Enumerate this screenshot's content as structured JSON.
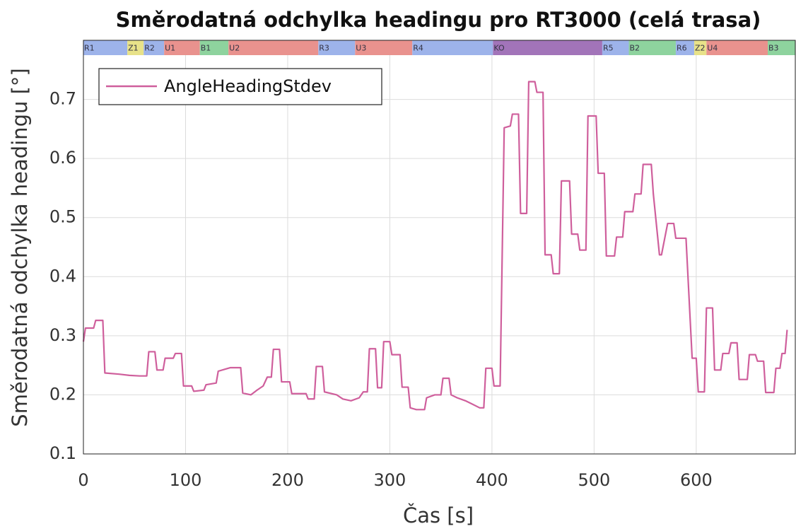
{
  "chart_data": {
    "type": "line",
    "title": "Směrodatná odchylka headingu pro RT3000 (celá trasa)",
    "xlabel": "Čas [s]",
    "ylabel": "Směrodatná odchylka headingu [°]",
    "xlim": [
      0,
      697
    ],
    "ylim": [
      0.1,
      0.8
    ],
    "xticks": [
      0,
      100,
      200,
      300,
      400,
      500,
      600
    ],
    "yticks": [
      0.1,
      0.2,
      0.3,
      0.4,
      0.5,
      0.6,
      0.7
    ],
    "grid": true,
    "legend": "upper left",
    "bands": [
      {
        "label": "R1",
        "start": 0,
        "end": 43,
        "color": "#9db3ea"
      },
      {
        "label": "Z1",
        "start": 43,
        "end": 59,
        "color": "#e8e289"
      },
      {
        "label": "R2",
        "start": 59,
        "end": 79,
        "color": "#9db3ea"
      },
      {
        "label": "U1",
        "start": 79,
        "end": 114,
        "color": "#e9928e"
      },
      {
        "label": "B1",
        "start": 114,
        "end": 142,
        "color": "#8ed39e"
      },
      {
        "label": "U2",
        "start": 142,
        "end": 230,
        "color": "#e9928e"
      },
      {
        "label": "R3",
        "start": 230,
        "end": 266,
        "color": "#9db3ea"
      },
      {
        "label": "U3",
        "start": 266,
        "end": 322,
        "color": "#e9928e"
      },
      {
        "label": "R4",
        "start": 322,
        "end": 401,
        "color": "#9db3ea"
      },
      {
        "label": "KO",
        "start": 401,
        "end": 508,
        "color": "#a274b9"
      },
      {
        "label": "R5",
        "start": 508,
        "end": 534,
        "color": "#9db3ea"
      },
      {
        "label": "B2",
        "start": 534,
        "end": 580,
        "color": "#8ed39e"
      },
      {
        "label": "R6",
        "start": 580,
        "end": 598,
        "color": "#9db3ea"
      },
      {
        "label": "Z2",
        "start": 598,
        "end": 610,
        "color": "#e8e289"
      },
      {
        "label": "U4",
        "start": 610,
        "end": 670,
        "color": "#e9928e"
      },
      {
        "label": "B3",
        "start": 670,
        "end": 697,
        "color": "#8ed39e"
      }
    ],
    "series": [
      {
        "name": "AngleHeadingStdev",
        "color": "#cf5f9c",
        "x": [
          0,
          2,
          10,
          12,
          19,
          21,
          35,
          45,
          55,
          62,
          64,
          70,
          72,
          78,
          80,
          88,
          90,
          96,
          98,
          106,
          108,
          118,
          120,
          130,
          132,
          138,
          144,
          154,
          156,
          164,
          170,
          176,
          180,
          184,
          186,
          192,
          194,
          202,
          204,
          218,
          220,
          226,
          228,
          234,
          236,
          248,
          254,
          262,
          270,
          274,
          278,
          280,
          286,
          288,
          292,
          294,
          300,
          302,
          310,
          312,
          318,
          320,
          326,
          334,
          336,
          344,
          350,
          352,
          358,
          360,
          366,
          374,
          380,
          388,
          392,
          394,
          400,
          402,
          408,
          412,
          418,
          420,
          426,
          428,
          434,
          436,
          442,
          444,
          450,
          452,
          458,
          460,
          466,
          468,
          476,
          478,
          484,
          486,
          492,
          494,
          502,
          504,
          510,
          512,
          520,
          522,
          528,
          530,
          538,
          540,
          546,
          548,
          556,
          558,
          564,
          566,
          572,
          578,
          580,
          590,
          596,
          600,
          602,
          608,
          610,
          616,
          618,
          624,
          626,
          632,
          634,
          640,
          642,
          650,
          652,
          658,
          660,
          666,
          668,
          676,
          678,
          682,
          684,
          687,
          689
        ],
        "values": [
          0.29,
          0.313,
          0.313,
          0.326,
          0.326,
          0.237,
          0.235,
          0.233,
          0.232,
          0.232,
          0.273,
          0.273,
          0.242,
          0.242,
          0.262,
          0.262,
          0.27,
          0.27,
          0.215,
          0.215,
          0.206,
          0.208,
          0.217,
          0.22,
          0.24,
          0.243,
          0.246,
          0.246,
          0.203,
          0.2,
          0.208,
          0.215,
          0.23,
          0.23,
          0.277,
          0.277,
          0.222,
          0.222,
          0.202,
          0.202,
          0.193,
          0.193,
          0.248,
          0.248,
          0.205,
          0.2,
          0.193,
          0.19,
          0.195,
          0.205,
          0.205,
          0.278,
          0.278,
          0.212,
          0.212,
          0.29,
          0.29,
          0.268,
          0.268,
          0.213,
          0.213,
          0.178,
          0.175,
          0.175,
          0.195,
          0.2,
          0.2,
          0.228,
          0.228,
          0.2,
          0.195,
          0.19,
          0.185,
          0.178,
          0.178,
          0.245,
          0.245,
          0.215,
          0.215,
          0.652,
          0.655,
          0.675,
          0.675,
          0.507,
          0.507,
          0.73,
          0.73,
          0.712,
          0.712,
          0.437,
          0.437,
          0.405,
          0.405,
          0.562,
          0.562,
          0.472,
          0.472,
          0.445,
          0.445,
          0.672,
          0.672,
          0.575,
          0.575,
          0.435,
          0.435,
          0.467,
          0.467,
          0.51,
          0.51,
          0.54,
          0.54,
          0.59,
          0.59,
          0.54,
          0.437,
          0.437,
          0.49,
          0.49,
          0.465,
          0.465,
          0.262,
          0.262,
          0.205,
          0.205,
          0.347,
          0.347,
          0.242,
          0.242,
          0.27,
          0.27,
          0.288,
          0.288,
          0.226,
          0.226,
          0.268,
          0.268,
          0.257,
          0.257,
          0.204,
          0.204,
          0.245,
          0.245,
          0.27,
          0.27,
          0.31
        ]
      }
    ]
  }
}
